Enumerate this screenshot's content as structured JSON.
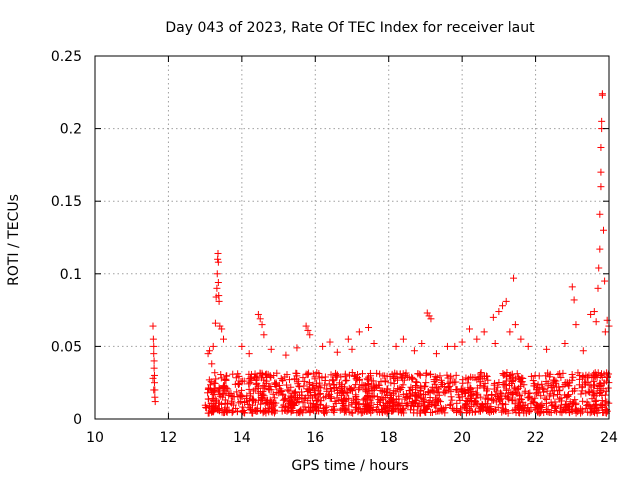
{
  "chart_data": {
    "type": "scatter",
    "title": "Day 043 of 2023, Rate Of TEC Index for receiver laut",
    "xlabel": "GPS time / hours",
    "ylabel": "ROTI / TECUs",
    "xlim": [
      10,
      24
    ],
    "ylim": [
      0,
      0.25
    ],
    "xticks": [
      10,
      12,
      14,
      16,
      18,
      20,
      22,
      24
    ],
    "xtick_labels": [
      "10",
      "12",
      "14",
      "16",
      "18",
      "20",
      "22",
      "24"
    ],
    "yticks": [
      0,
      0.05,
      0.1,
      0.15,
      0.2,
      0.25
    ],
    "ytick_labels": [
      "0",
      "0.05",
      "0.1",
      "0.15",
      "0.2",
      "0.25"
    ],
    "grid": true,
    "marker": "+",
    "color": "#ff0000",
    "series": [
      {
        "name": "ROTI",
        "x": [
          11.58,
          11.59,
          11.6,
          11.6,
          11.61,
          11.61,
          11.62,
          11.62,
          11.63,
          11.63,
          11.64,
          11.58,
          11.6,
          13.08,
          13.12,
          13.18,
          13.22,
          13.28,
          13.3,
          13.32,
          13.33,
          13.34,
          13.35,
          13.36,
          13.36,
          13.37,
          13.38,
          13.4,
          13.45,
          14.45,
          14.5,
          14.55,
          14.6,
          15.75,
          15.8,
          15.85,
          16.4,
          16.9,
          17.2,
          17.45,
          19.05,
          19.1,
          19.15,
          18.9,
          19.6,
          20.2,
          20.4,
          20.6,
          20.85,
          21.0,
          21.1,
          21.2,
          21.3,
          21.4,
          21.45,
          23.0,
          23.05,
          23.1,
          23.5,
          23.6,
          23.65,
          23.7,
          23.72,
          23.75,
          23.75,
          23.78,
          23.78,
          23.78,
          23.8,
          23.8,
          23.82,
          23.82,
          23.85,
          23.88,
          23.9,
          23.95,
          24.0,
          13.5,
          14.0,
          14.2,
          14.8,
          15.2,
          15.5,
          16.2,
          16.6,
          17.0,
          17.6,
          18.2,
          18.4,
          18.7,
          19.3,
          19.8,
          20.0,
          20.9,
          21.6,
          21.8,
          22.3,
          22.8,
          23.3
        ],
        "y": [
          0.064,
          0.055,
          0.05,
          0.045,
          0.04,
          0.035,
          0.03,
          0.025,
          0.02,
          0.015,
          0.012,
          0.028,
          0.02,
          0.045,
          0.047,
          0.038,
          0.05,
          0.066,
          0.084,
          0.09,
          0.1,
          0.11,
          0.114,
          0.108,
          0.094,
          0.085,
          0.081,
          0.064,
          0.062,
          0.072,
          0.069,
          0.065,
          0.058,
          0.064,
          0.061,
          0.058,
          0.053,
          0.055,
          0.06,
          0.063,
          0.073,
          0.071,
          0.069,
          0.052,
          0.05,
          0.062,
          0.055,
          0.06,
          0.07,
          0.074,
          0.078,
          0.081,
          0.06,
          0.097,
          0.065,
          0.091,
          0.082,
          0.065,
          0.072,
          0.074,
          0.067,
          0.09,
          0.104,
          0.117,
          0.141,
          0.16,
          0.17,
          0.187,
          0.2,
          0.205,
          0.223,
          0.224,
          0.13,
          0.095,
          0.06,
          0.068,
          0.064,
          0.055,
          0.05,
          0.045,
          0.048,
          0.044,
          0.049,
          0.05,
          0.046,
          0.048,
          0.052,
          0.05,
          0.055,
          0.047,
          0.045,
          0.05,
          0.053,
          0.052,
          0.055,
          0.05,
          0.048,
          0.052,
          0.047
        ]
      }
    ],
    "dense_band": {
      "x_start": 13.0,
      "x_end": 24.0,
      "y_low": 0.004,
      "y_high": 0.032
    }
  }
}
